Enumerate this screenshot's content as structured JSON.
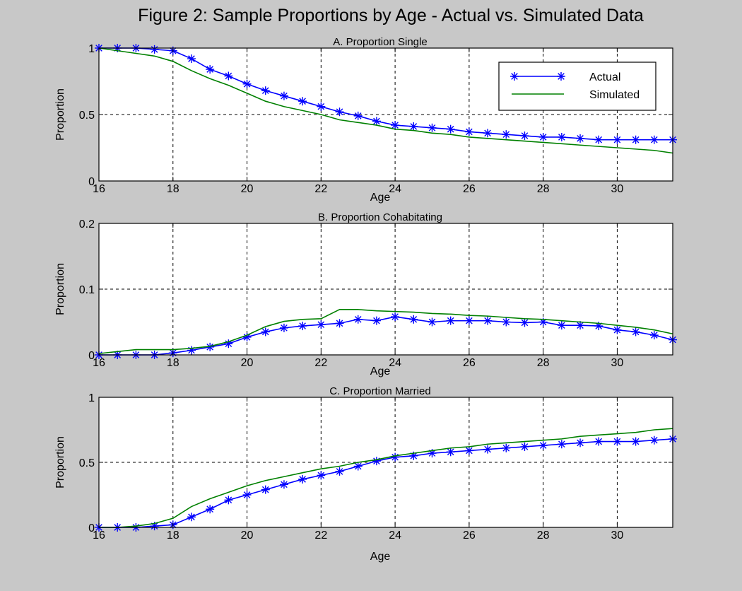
{
  "figure_title": "Figure 2:  Sample Proportions by Age - Actual vs. Simulated Data",
  "colors": {
    "background": "#c8c8c8",
    "axes_background": "#ffffff",
    "actual": "#0000ff",
    "simulated": "#008000",
    "grid": "#000000"
  },
  "chart_data": [
    {
      "type": "line",
      "title": "A. Proportion Single",
      "xlabel": "Age",
      "ylabel": "Proportion",
      "xlim": [
        16,
        31.5
      ],
      "ylim": [
        0,
        1
      ],
      "xticks": [
        16,
        18,
        20,
        22,
        24,
        26,
        28,
        30
      ],
      "yticks": [
        0,
        0.5,
        1
      ],
      "ytick_labels": [
        "0",
        "0.5",
        "1"
      ],
      "grid": true,
      "legend": {
        "position": "top-right",
        "entries": [
          "Actual",
          "Simulated"
        ]
      },
      "series": [
        {
          "name": "Actual",
          "marker": "asterisk",
          "x": [
            16,
            16.5,
            17,
            17.5,
            18,
            18.5,
            19,
            19.5,
            20,
            20.5,
            21,
            21.5,
            22,
            22.5,
            23,
            23.5,
            24,
            24.5,
            25,
            25.5,
            26,
            26.5,
            27,
            27.5,
            28,
            28.5,
            29,
            29.5,
            30,
            30.5,
            31,
            31.5
          ],
          "y": [
            1.0,
            1.0,
            1.0,
            0.99,
            0.98,
            0.92,
            0.84,
            0.79,
            0.73,
            0.68,
            0.64,
            0.6,
            0.56,
            0.52,
            0.49,
            0.45,
            0.42,
            0.41,
            0.4,
            0.39,
            0.37,
            0.36,
            0.35,
            0.34,
            0.33,
            0.33,
            0.32,
            0.31,
            0.31,
            0.31,
            0.31,
            0.31
          ]
        },
        {
          "name": "Simulated",
          "x": [
            16,
            16.5,
            17,
            17.5,
            18,
            18.5,
            19,
            19.5,
            20,
            20.5,
            21,
            21.5,
            22,
            22.5,
            23,
            23.5,
            24,
            24.5,
            25,
            25.5,
            26,
            26.5,
            27,
            27.5,
            28,
            28.5,
            29,
            29.5,
            30,
            30.5,
            31,
            31.5
          ],
          "y": [
            1.0,
            0.98,
            0.96,
            0.94,
            0.9,
            0.83,
            0.77,
            0.72,
            0.66,
            0.6,
            0.56,
            0.53,
            0.5,
            0.46,
            0.44,
            0.42,
            0.39,
            0.38,
            0.36,
            0.35,
            0.33,
            0.32,
            0.31,
            0.3,
            0.29,
            0.28,
            0.27,
            0.26,
            0.25,
            0.24,
            0.23,
            0.21
          ]
        }
      ]
    },
    {
      "type": "line",
      "title": "B. Proportion Cohabitating",
      "xlabel": "Age",
      "ylabel": "Proportion",
      "xlim": [
        16,
        31.5
      ],
      "ylim": [
        0,
        0.2
      ],
      "xticks": [
        16,
        18,
        20,
        22,
        24,
        26,
        28,
        30
      ],
      "yticks": [
        0,
        0.1,
        0.2
      ],
      "ytick_labels": [
        "0",
        "0.1",
        "0.2"
      ],
      "grid": true,
      "series": [
        {
          "name": "Actual",
          "marker": "asterisk",
          "x": [
            16,
            16.5,
            17,
            17.5,
            18,
            18.5,
            19,
            19.5,
            20,
            20.5,
            21,
            21.5,
            22,
            22.5,
            23,
            23.5,
            24,
            24.5,
            25,
            25.5,
            26,
            26.5,
            27,
            27.5,
            28,
            28.5,
            29,
            29.5,
            30,
            30.5,
            31,
            31.5
          ],
          "y": [
            0,
            0,
            0,
            0,
            0.003,
            0.007,
            0.012,
            0.017,
            0.027,
            0.035,
            0.041,
            0.044,
            0.046,
            0.048,
            0.054,
            0.052,
            0.058,
            0.054,
            0.05,
            0.052,
            0.052,
            0.052,
            0.05,
            0.049,
            0.05,
            0.045,
            0.045,
            0.044,
            0.038,
            0.035,
            0.03,
            0.023
          ]
        },
        {
          "name": "Simulated",
          "x": [
            16,
            16.5,
            17,
            17.5,
            18,
            18.5,
            19,
            19.5,
            20,
            20.5,
            21,
            21.5,
            22,
            22.5,
            23,
            23.5,
            24,
            24.5,
            25,
            25.5,
            26,
            26.5,
            27,
            27.5,
            28,
            28.5,
            29,
            29.5,
            30,
            30.5,
            31,
            31.5
          ],
          "y": [
            0.002,
            0.005,
            0.008,
            0.008,
            0.008,
            0.01,
            0.013,
            0.02,
            0.03,
            0.043,
            0.051,
            0.054,
            0.055,
            0.069,
            0.069,
            0.067,
            0.066,
            0.065,
            0.063,
            0.062,
            0.06,
            0.059,
            0.057,
            0.055,
            0.054,
            0.052,
            0.05,
            0.048,
            0.045,
            0.042,
            0.038,
            0.032
          ]
        }
      ]
    },
    {
      "type": "line",
      "title": "C. Proportion Married",
      "xlabel": "Age",
      "ylabel": "Proportion",
      "xlim": [
        16,
        31.5
      ],
      "ylim": [
        0,
        1
      ],
      "xticks": [
        16,
        18,
        20,
        22,
        24,
        26,
        28,
        30
      ],
      "yticks": [
        0,
        0.5,
        1
      ],
      "ytick_labels": [
        "0",
        "0.5",
        "1"
      ],
      "grid": true,
      "series": [
        {
          "name": "Actual",
          "marker": "asterisk",
          "x": [
            16,
            16.5,
            17,
            17.5,
            18,
            18.5,
            19,
            19.5,
            20,
            20.5,
            21,
            21.5,
            22,
            22.5,
            23,
            23.5,
            24,
            24.5,
            25,
            25.5,
            26,
            26.5,
            27,
            27.5,
            28,
            28.5,
            29,
            29.5,
            30,
            30.5,
            31,
            31.5
          ],
          "y": [
            0,
            0,
            0,
            0.01,
            0.02,
            0.08,
            0.14,
            0.21,
            0.25,
            0.29,
            0.33,
            0.37,
            0.4,
            0.43,
            0.47,
            0.51,
            0.54,
            0.55,
            0.57,
            0.58,
            0.59,
            0.6,
            0.61,
            0.62,
            0.63,
            0.64,
            0.65,
            0.66,
            0.66,
            0.66,
            0.67,
            0.68
          ]
        },
        {
          "name": "Simulated",
          "x": [
            16,
            16.5,
            17,
            17.5,
            18,
            18.5,
            19,
            19.5,
            20,
            20.5,
            21,
            21.5,
            22,
            22.5,
            23,
            23.5,
            24,
            24.5,
            25,
            25.5,
            26,
            26.5,
            27,
            27.5,
            28,
            28.5,
            29,
            29.5,
            30,
            30.5,
            31,
            31.5
          ],
          "y": [
            0,
            0,
            0.01,
            0.03,
            0.07,
            0.16,
            0.22,
            0.27,
            0.32,
            0.36,
            0.39,
            0.42,
            0.45,
            0.47,
            0.5,
            0.52,
            0.55,
            0.57,
            0.59,
            0.61,
            0.62,
            0.64,
            0.65,
            0.66,
            0.67,
            0.68,
            0.7,
            0.71,
            0.72,
            0.73,
            0.75,
            0.76
          ]
        }
      ]
    }
  ]
}
